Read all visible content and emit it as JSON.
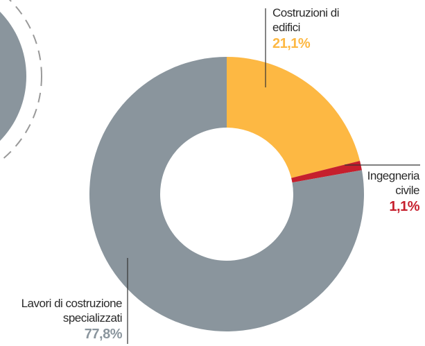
{
  "chart_data": {
    "type": "donut",
    "categories": [
      "Costruzioni di edifici",
      "Ingegneria civile",
      "Lavori di costruzione specializzati"
    ],
    "values": [
      21.1,
      1.1,
      77.8
    ],
    "value_labels": [
      "21,1%",
      "1,1%",
      "77,8%"
    ],
    "colors": [
      "#fdb843",
      "#c61f2d",
      "#8a959d"
    ]
  }
}
